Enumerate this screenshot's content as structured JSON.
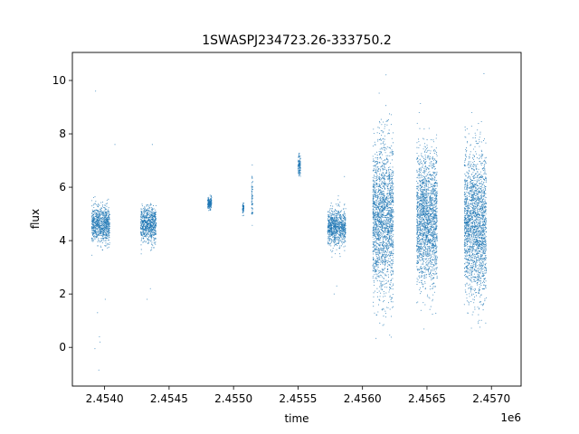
{
  "chart_data": {
    "type": "scatter",
    "title": "1SWASPJ234723.26-333750.2",
    "xlabel": "time",
    "ylabel": "flux",
    "x_offset_label": "1e6",
    "xlim": [
      2453750,
      2457230
    ],
    "ylim": [
      -1.45,
      11.05
    ],
    "x_ticks": [
      2454000,
      2454500,
      2455000,
      2455500,
      2456000,
      2456500,
      2457000
    ],
    "x_tick_labels": [
      "2.4540",
      "2.4545",
      "2.4550",
      "2.4555",
      "2.4560",
      "2.4565",
      "2.4570"
    ],
    "y_ticks": [
      0,
      2,
      4,
      6,
      8,
      10
    ],
    "y_tick_labels": [
      "0",
      "2",
      "4",
      "6",
      "8",
      "10"
    ],
    "grid": false,
    "marker_color": "#1f77b4",
    "series": [
      {
        "points_summary": [
          {
            "x_range": [
              2453900,
              2454040
            ],
            "y_center": 4.6,
            "y_spread": 0.6
          },
          {
            "x_range": [
              2454280,
              2454400
            ],
            "y_center": 4.6,
            "y_spread": 0.6
          },
          {
            "x_range": [
              2454800,
              2454830
            ],
            "y_center": 5.4,
            "y_spread": 0.2
          },
          {
            "x_range": [
              2455070,
              2455080
            ],
            "y_center": 5.2,
            "y_spread": 0.2
          },
          {
            "x_range": [
              2455140,
              2455150
            ],
            "y_center": 5.6,
            "y_spread": 0.9
          },
          {
            "x_range": [
              2455500,
              2455520
            ],
            "y_center": 6.8,
            "y_spread": 0.4
          },
          {
            "x_range": [
              2455730,
              2455870
            ],
            "y_center": 4.5,
            "y_spread": 0.6
          },
          {
            "x_range": [
              2456080,
              2456240
            ],
            "y_center": 4.8,
            "y_spread": 2.6
          },
          {
            "x_range": [
              2456420,
              2456580
            ],
            "y_center": 4.8,
            "y_spread": 2.2
          },
          {
            "x_range": [
              2456790,
              2456960
            ],
            "y_center": 4.6,
            "y_spread": 2.4
          }
        ],
        "outliers": [
          [
            2453930,
            9.6
          ],
          [
            2453925,
            -0.05
          ],
          [
            2453945,
            1.3
          ],
          [
            2453960,
            0.4
          ],
          [
            2453965,
            0.2
          ],
          [
            2453955,
            -0.85
          ],
          [
            2454005,
            1.8
          ],
          [
            2454080,
            7.6
          ],
          [
            2454370,
            7.6
          ],
          [
            2454330,
            1.8
          ],
          [
            2454355,
            2.2
          ],
          [
            2455860,
            6.4
          ],
          [
            2455780,
            2.0
          ],
          [
            2455800,
            2.3
          ]
        ]
      }
    ]
  }
}
